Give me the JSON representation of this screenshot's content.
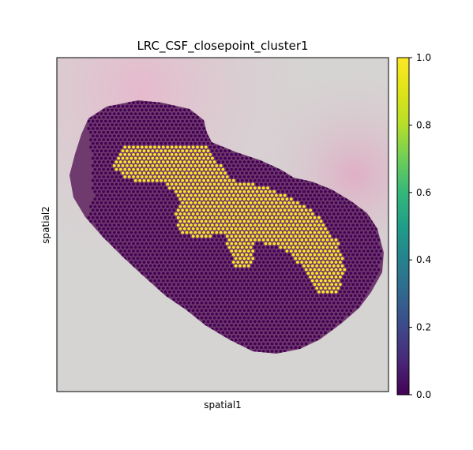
{
  "chart_data": {
    "type": "scatter",
    "title": "LRC_CSF_closepoint_cluster1",
    "xlabel": "spatial1",
    "ylabel": "spatial2",
    "colorbar": {
      "colormap": "viridis",
      "range": [
        0.0,
        1.0
      ],
      "ticks": [
        "0.0",
        "0.2",
        "0.4",
        "0.6",
        "0.8",
        "1.0"
      ]
    },
    "x_ticks_shown": false,
    "y_ticks_shown": false,
    "background": "H&E tissue image",
    "series": [
      {
        "value": 0.0,
        "color": "#440154"
      },
      {
        "value": 1.0,
        "color": "#fde725"
      }
    ]
  }
}
